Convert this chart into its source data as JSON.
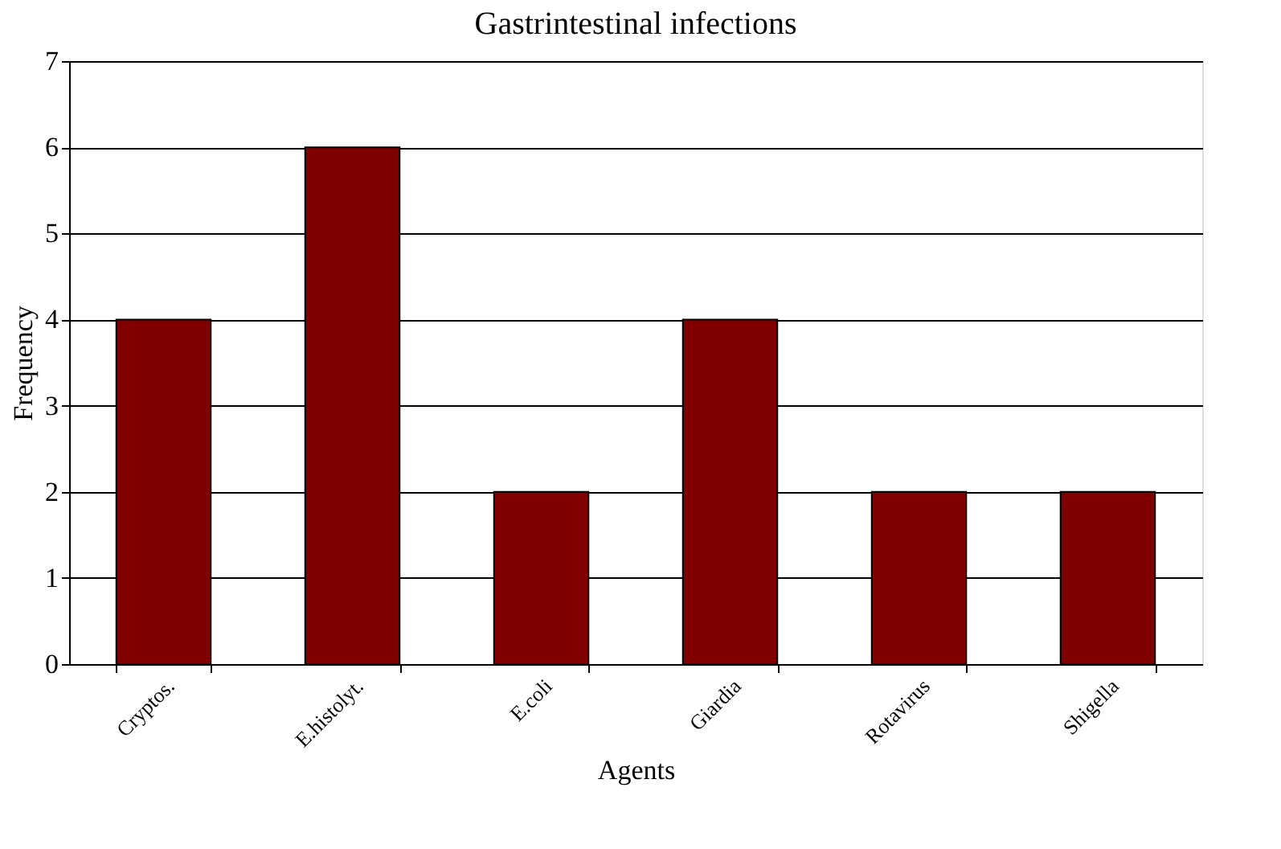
{
  "chart_data": {
    "type": "bar",
    "title": "Gastrintestinal infections",
    "xlabel": "Agents",
    "ylabel": "Frequency",
    "categories": [
      "Cryptos.",
      "E.histolyt.",
      "E.coli",
      "Giardia",
      "Rotavirus",
      "Shigella"
    ],
    "series": [
      {
        "color": "#800000",
        "values": [
          4,
          6,
          2,
          4,
          2,
          2
        ]
      }
    ],
    "ylim": [
      0,
      7
    ],
    "yticks": [
      0,
      1,
      2,
      3,
      4,
      5,
      6,
      7
    ],
    "grid": "y"
  }
}
